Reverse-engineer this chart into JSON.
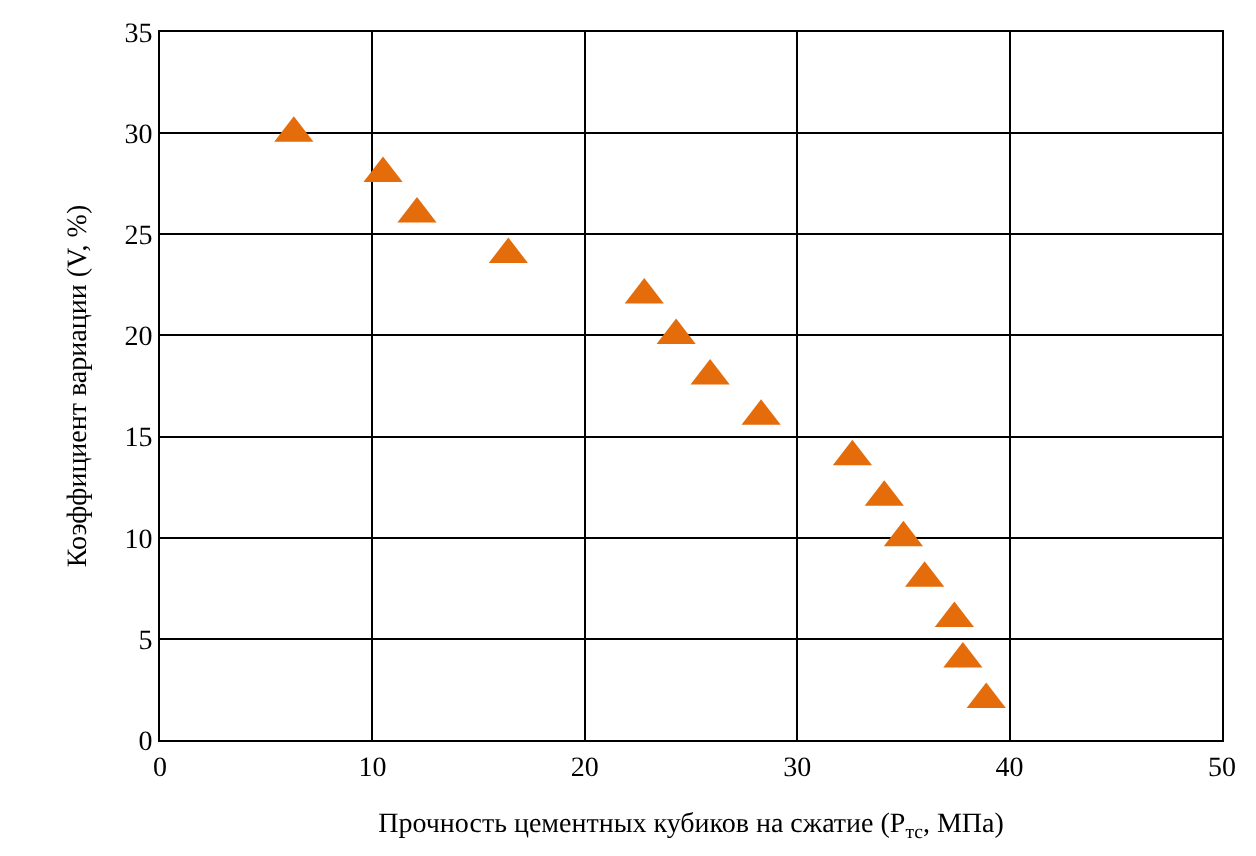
{
  "chart_data": {
    "type": "scatter",
    "xlabel": "Прочность цементных кубиков на сжатие (P$_{тс}$, МПа)",
    "ylabel": "Коэффициент вариации (V, %)",
    "x": [
      6.3,
      10.5,
      12.1,
      16.4,
      22.8,
      24.3,
      25.9,
      28.3,
      32.6,
      34.1,
      35.0,
      36.0,
      37.4,
      37.8,
      38.9
    ],
    "series": [
      {
        "color": "#e46c0a",
        "values": [
          30,
          28,
          26,
          24,
          22,
          20,
          18,
          16,
          14,
          12,
          10,
          8,
          6,
          4,
          2
        ]
      }
    ],
    "xlim": [
      0,
      50
    ],
    "xticks": [
      0,
      10,
      20,
      30,
      40,
      50
    ],
    "ylim": [
      0,
      35
    ],
    "yticks": [
      0,
      5,
      10,
      15,
      20,
      25,
      30,
      35
    ],
    "grid": true,
    "marker": "triangle"
  }
}
